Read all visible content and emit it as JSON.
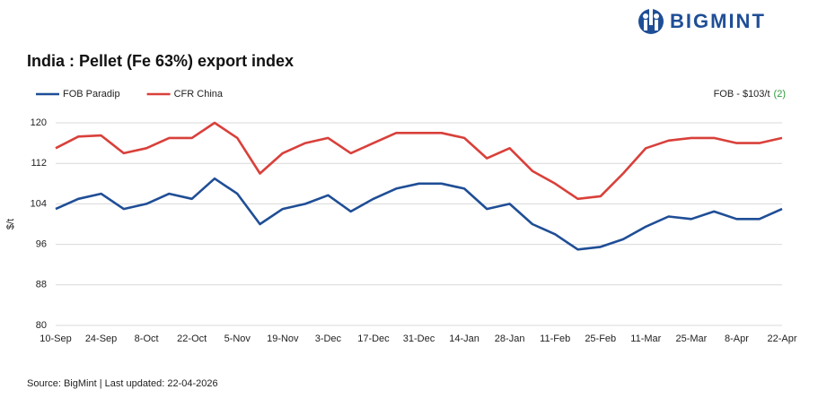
{
  "brand": "BIGMINT",
  "chart_data": {
    "type": "line",
    "title": "India : Pellet (Fe 63%) export index",
    "y_label": "$/t",
    "note": "FOB - $103/t",
    "note_change": "(2)",
    "source": "Source: BigMint | Last updated: 22-04-2026",
    "categories": [
      "10-Sep",
      null,
      "24-Sep",
      null,
      "8-Oct",
      null,
      "22-Oct",
      null,
      "5-Nov",
      null,
      "19-Nov",
      null,
      "3-Dec",
      null,
      "17-Dec",
      null,
      "31-Dec",
      null,
      "14-Jan",
      null,
      "28-Jan",
      null,
      "11-Feb",
      null,
      "25-Feb",
      null,
      "11-Mar",
      null,
      "25-Mar",
      null,
      "8-Apr",
      null,
      "22-Apr"
    ],
    "series": [
      {
        "name": "FOB Paradip",
        "color": "#1f4e96",
        "values": [
          103,
          105,
          106,
          103,
          104,
          106,
          105,
          109,
          106,
          100,
          103,
          104,
          105.7,
          102.5,
          105,
          107,
          108,
          108,
          107,
          103,
          104,
          100,
          98,
          95,
          95.5,
          97,
          99.5,
          101.5,
          101,
          102.5,
          101,
          101,
          103
        ]
      },
      {
        "name": "CFR China",
        "color": "#d9403a",
        "values": [
          115,
          117.3,
          117.5,
          114,
          115,
          117,
          117,
          120,
          117,
          110,
          114,
          116,
          117,
          114,
          116,
          118,
          118,
          118,
          117,
          113,
          115,
          110.5,
          108,
          105,
          105.5,
          110,
          115,
          116.5,
          117,
          117,
          116,
          116,
          117
        ]
      }
    ],
    "ylim": [
      80,
      120
    ],
    "yticks": [
      80,
      88,
      96,
      104,
      112,
      120
    ],
    "grid": true
  }
}
